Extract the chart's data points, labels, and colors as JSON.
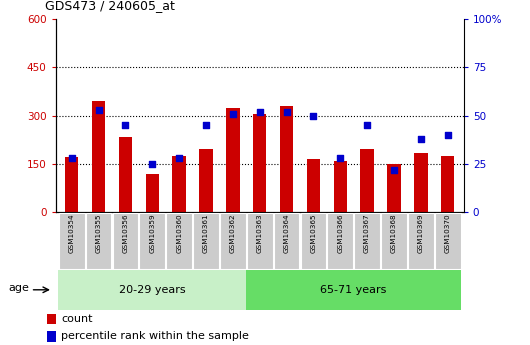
{
  "title": "GDS473 / 240605_at",
  "samples": [
    "GSM10354",
    "GSM10355",
    "GSM10356",
    "GSM10359",
    "GSM10360",
    "GSM10361",
    "GSM10362",
    "GSM10363",
    "GSM10364",
    "GSM10365",
    "GSM10366",
    "GSM10367",
    "GSM10368",
    "GSM10369",
    "GSM10370"
  ],
  "counts": [
    170,
    345,
    235,
    120,
    175,
    195,
    325,
    305,
    330,
    165,
    160,
    195,
    150,
    185,
    175
  ],
  "percentiles": [
    28,
    53,
    45,
    25,
    28,
    45,
    51,
    52,
    52,
    50,
    28,
    45,
    22,
    38,
    40
  ],
  "group1_label": "20-29 years",
  "group2_label": "65-71 years",
  "group1_count": 7,
  "group2_count": 8,
  "bar_color_count": "#cc0000",
  "bar_color_pct": "#0000cc",
  "group1_bg": "#c8f0c8",
  "group2_bg": "#66dd66",
  "age_label": "age",
  "ylim_left": [
    0,
    600
  ],
  "ylim_right": [
    0,
    100
  ],
  "yticks_left": [
    0,
    150,
    300,
    450,
    600
  ],
  "yticks_right": [
    0,
    25,
    50,
    75,
    100
  ],
  "grid_ticks": [
    150,
    300,
    450
  ],
  "legend_count": "count",
  "legend_pct": "percentile rank within the sample",
  "bar_width": 0.5,
  "tick_bg": "#cccccc"
}
